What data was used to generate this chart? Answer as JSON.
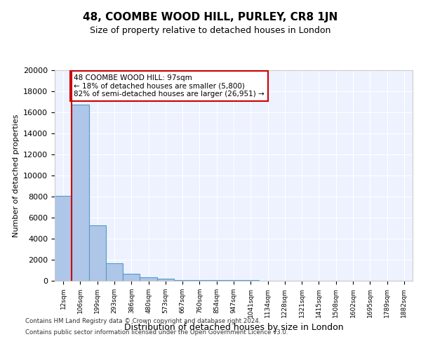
{
  "title": "48, COOMBE WOOD HILL, PURLEY, CR8 1JN",
  "subtitle": "Size of property relative to detached houses in London",
  "xlabel": "Distribution of detached houses by size in London",
  "ylabel": "Number of detached properties",
  "bar_labels": [
    "12sqm",
    "106sqm",
    "199sqm",
    "293sqm",
    "386sqm",
    "480sqm",
    "573sqm",
    "667sqm",
    "760sqm",
    "854sqm",
    "947sqm",
    "1041sqm",
    "1134sqm",
    "1228sqm",
    "1321sqm",
    "1415sqm",
    "1508sqm",
    "1602sqm",
    "1695sqm",
    "1789sqm",
    "1882sqm"
  ],
  "bar_heights": [
    8100,
    16700,
    5300,
    1700,
    700,
    350,
    200,
    100,
    80,
    60,
    50,
    40,
    30,
    25,
    20,
    15,
    12,
    10,
    8,
    5,
    3
  ],
  "bar_color": "#aec6e8",
  "bar_edge_color": "#5599cc",
  "annotation_text": "48 COOMBE WOOD HILL: 97sqm\n← 18% of detached houses are smaller (5,800)\n82% of semi-detached houses are larger (26,951) →",
  "annotation_box_color": "#ffffff",
  "annotation_border_color": "#cc0000",
  "property_line_color": "#cc0000",
  "property_line_x": 0.5,
  "ylim": [
    0,
    20000
  ],
  "yticks": [
    0,
    2000,
    4000,
    6000,
    8000,
    10000,
    12000,
    14000,
    16000,
    18000,
    20000
  ],
  "footer_line1": "Contains HM Land Registry data © Crown copyright and database right 2024.",
  "footer_line2": "Contains public sector information licensed under the Open Government Licence v3.0.",
  "bg_color": "#eef2ff",
  "grid_color": "#ffffff",
  "fig_bg_color": "#ffffff"
}
